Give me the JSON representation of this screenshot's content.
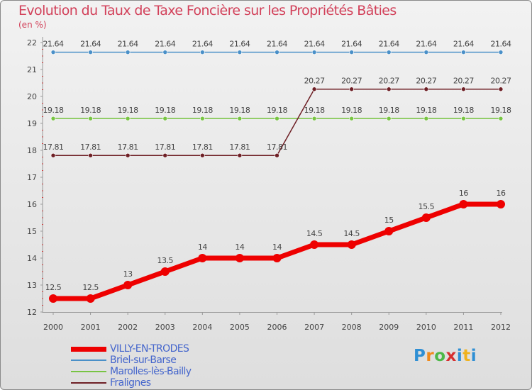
{
  "chart_data": {
    "type": "line",
    "title": "Evolution du Taux de Taxe Foncière sur les Propriétés Bâties",
    "unit_label": "(en %)",
    "categories": [
      "2000",
      "2001",
      "2002",
      "2003",
      "2004",
      "2005",
      "2006",
      "2007",
      "2008",
      "2009",
      "2010",
      "2011",
      "2012"
    ],
    "ylim": [
      12,
      22
    ],
    "yticks": [
      "12",
      "13",
      "14",
      "15",
      "16",
      "17",
      "18",
      "19",
      "20",
      "21",
      "22"
    ],
    "series": [
      {
        "name": "VILLY-EN-TRODES",
        "color": "#ee0000",
        "values": [
          12.5,
          12.5,
          13,
          13.5,
          14,
          14,
          14,
          14.5,
          14.5,
          15,
          15.5,
          16,
          16
        ],
        "labels": [
          "12.5",
          "12.5",
          "13",
          "13.5",
          "14",
          "14",
          "14",
          "14.5",
          "14.5",
          "15",
          "15.5",
          "16",
          "16"
        ]
      },
      {
        "name": "Briel-sur-Barse",
        "color": "#4a90c8",
        "values": [
          21.64,
          21.64,
          21.64,
          21.64,
          21.64,
          21.64,
          21.64,
          21.64,
          21.64,
          21.64,
          21.64,
          21.64,
          21.64
        ],
        "labels": [
          "21.64",
          "21.64",
          "21.64",
          "21.64",
          "21.64",
          "21.64",
          "21.64",
          "21.64",
          "21.64",
          "21.64",
          "21.64",
          "21.64",
          "21.64"
        ]
      },
      {
        "name": "Marolles-lès-Bailly",
        "color": "#78c443",
        "values": [
          19.18,
          19.18,
          19.18,
          19.18,
          19.18,
          19.18,
          19.18,
          19.18,
          19.18,
          19.18,
          19.18,
          19.18,
          19.18
        ],
        "labels": [
          "19.18",
          "19.18",
          "19.18",
          "19.18",
          "19.18",
          "19.18",
          "19.18",
          "19.18",
          "19.18",
          "19.18",
          "19.18",
          "19.18",
          "19.18"
        ]
      },
      {
        "name": "Fralignes",
        "color": "#6e1f25",
        "values": [
          17.81,
          17.81,
          17.81,
          17.81,
          17.81,
          17.81,
          17.81,
          20.27,
          20.27,
          20.27,
          20.27,
          20.27,
          20.27
        ],
        "labels": [
          "17.81",
          "17.81",
          "17.81",
          "17.81",
          "17.81",
          "17.81",
          "17.81",
          "20.27",
          "20.27",
          "20.27",
          "20.27",
          "20.27",
          "20.27"
        ]
      }
    ]
  },
  "logo": {
    "letters": [
      "P",
      "r",
      "o",
      "x",
      "i",
      "t",
      "i"
    ],
    "colors": [
      "#2f8fd4",
      "#f08a1c",
      "#4cb848",
      "#d62f2f",
      "#2f8fd4",
      "#f0b21c",
      "#2f8fd4"
    ]
  }
}
